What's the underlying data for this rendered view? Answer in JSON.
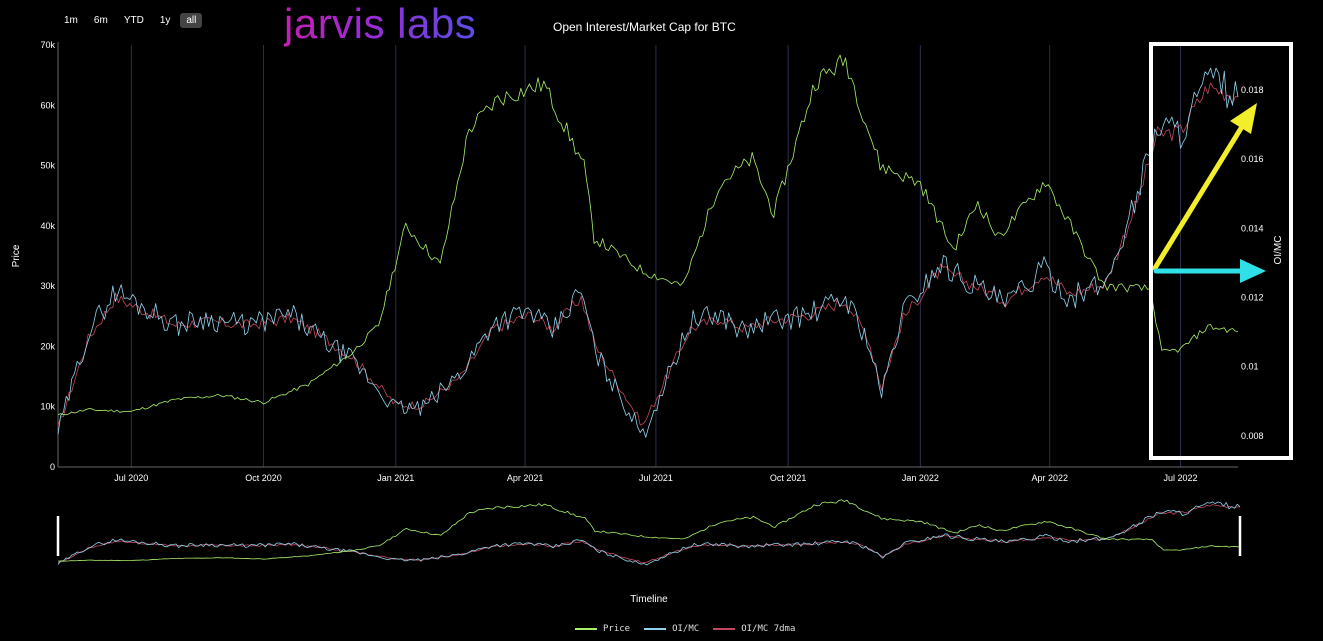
{
  "brand": "jarvis labs",
  "range_buttons": [
    {
      "label": "1m",
      "active": false
    },
    {
      "label": "6m",
      "active": false
    },
    {
      "label": "YTD",
      "active": false
    },
    {
      "label": "1y",
      "active": false
    },
    {
      "label": "all",
      "active": true
    }
  ],
  "timeline_label": "Timeline",
  "chart_data": {
    "type": "line",
    "title": "Open Interest/Market Cap for BTC",
    "xlabel": "",
    "ylabel": "Price",
    "y2label": "OI/MC",
    "x_ticks": [
      "Jul 2020",
      "Oct 2020",
      "Jan 2021",
      "Apr 2021",
      "Jul 2021",
      "Oct 2021",
      "Jan 2022",
      "Apr 2022",
      "Jul 2022"
    ],
    "x_range": [
      "2020-05-11",
      "2022-08-10"
    ],
    "y_ticks": [
      "0",
      "10k",
      "20k",
      "30k",
      "40k",
      "50k",
      "60k",
      "70k"
    ],
    "ylim": [
      0,
      70000
    ],
    "y2_ticks": [
      "0.008",
      "0.01",
      "0.012",
      "0.014",
      "0.016",
      "0.018"
    ],
    "y2lim": [
      0.0071,
      0.0193
    ],
    "grid": "vertical",
    "legend_position": "bottom",
    "series": [
      {
        "name": "Price",
        "color": "#a9f06a",
        "axis": "left",
        "x": [
          "2020-05-11",
          "2020-06-01",
          "2020-07-01",
          "2020-08-01",
          "2020-09-01",
          "2020-10-01",
          "2020-11-01",
          "2020-12-01",
          "2020-12-20",
          "2021-01-08",
          "2021-02-01",
          "2021-02-21",
          "2021-03-13",
          "2021-04-14",
          "2021-05-12",
          "2021-05-19",
          "2021-06-22",
          "2021-07-20",
          "2021-08-14",
          "2021-09-06",
          "2021-09-21",
          "2021-10-20",
          "2021-11-10",
          "2021-12-04",
          "2022-01-01",
          "2022-01-24",
          "2022-02-10",
          "2022-02-24",
          "2022-03-29",
          "2022-05-09",
          "2022-06-10",
          "2022-06-18",
          "2022-07-01",
          "2022-07-20",
          "2022-08-10"
        ],
        "values": [
          8600,
          9500,
          9200,
          11200,
          11900,
          10700,
          13700,
          18800,
          23500,
          40000,
          33500,
          56000,
          61000,
          63500,
          50000,
          38000,
          32500,
          30000,
          47000,
          51000,
          42000,
          64000,
          67500,
          50000,
          47000,
          36000,
          44000,
          38000,
          47500,
          30000,
          29500,
          19000,
          19500,
          23300,
          22500
        ]
      },
      {
        "name": "OI/MC",
        "color": "#8fd3ec",
        "axis": "right",
        "x": [
          "2020-05-11",
          "2020-06-01",
          "2020-06-20",
          "2020-08-01",
          "2020-08-20",
          "2020-09-20",
          "2020-10-20",
          "2020-11-10",
          "2020-12-01",
          "2021-01-01",
          "2021-01-20",
          "2021-02-15",
          "2021-03-10",
          "2021-04-05",
          "2021-04-20",
          "2021-05-10",
          "2021-05-20",
          "2021-06-22",
          "2021-07-25",
          "2021-08-15",
          "2021-09-01",
          "2021-09-15",
          "2021-10-15",
          "2021-11-10",
          "2021-11-25",
          "2021-12-05",
          "2021-12-20",
          "2022-01-15",
          "2022-02-10",
          "2022-03-01",
          "2022-03-28",
          "2022-04-15",
          "2022-05-10",
          "2022-06-01",
          "2022-06-15",
          "2022-07-01",
          "2022-07-20",
          "2022-08-10"
        ],
        "values": [
          0.0081,
          0.011,
          0.0122,
          0.0112,
          0.0114,
          0.0112,
          0.0115,
          0.0108,
          0.0102,
          0.0088,
          0.0088,
          0.0098,
          0.0113,
          0.0116,
          0.011,
          0.0122,
          0.0104,
          0.008,
          0.0113,
          0.0115,
          0.011,
          0.0113,
          0.0115,
          0.012,
          0.0108,
          0.0092,
          0.0116,
          0.013,
          0.0123,
          0.0118,
          0.0128,
          0.012,
          0.0124,
          0.015,
          0.017,
          0.0168,
          0.0183,
          0.0178
        ]
      },
      {
        "name": "OI/MC 7dma",
        "color": "#c2475e",
        "axis": "right",
        "x": [
          "2020-05-11",
          "2020-06-01",
          "2020-06-20",
          "2020-08-01",
          "2020-08-20",
          "2020-09-20",
          "2020-10-20",
          "2020-11-10",
          "2020-12-01",
          "2021-01-01",
          "2021-01-20",
          "2021-02-15",
          "2021-03-10",
          "2021-04-05",
          "2021-04-20",
          "2021-05-10",
          "2021-05-20",
          "2021-06-22",
          "2021-07-25",
          "2021-08-15",
          "2021-09-01",
          "2021-09-15",
          "2021-10-15",
          "2021-11-10",
          "2021-11-25",
          "2021-12-05",
          "2021-12-20",
          "2022-01-15",
          "2022-02-10",
          "2022-03-01",
          "2022-03-28",
          "2022-04-15",
          "2022-05-10",
          "2022-06-01",
          "2022-06-15",
          "2022-07-01",
          "2022-07-20",
          "2022-08-10"
        ],
        "values": [
          0.0082,
          0.0108,
          0.012,
          0.0112,
          0.0113,
          0.0112,
          0.0114,
          0.0109,
          0.0103,
          0.0089,
          0.0089,
          0.0097,
          0.0111,
          0.0115,
          0.0111,
          0.012,
          0.0106,
          0.0083,
          0.0111,
          0.0114,
          0.0111,
          0.0113,
          0.0115,
          0.0119,
          0.0109,
          0.0094,
          0.0114,
          0.0128,
          0.0123,
          0.0119,
          0.0127,
          0.0121,
          0.0124,
          0.0148,
          0.0167,
          0.0168,
          0.0181,
          0.0178
        ]
      }
    ]
  },
  "annotations": {
    "highlight_box_color": "#ffffff",
    "arrow_up_color": "#f2ee2a",
    "arrow_right_color": "#2fe0e6"
  }
}
